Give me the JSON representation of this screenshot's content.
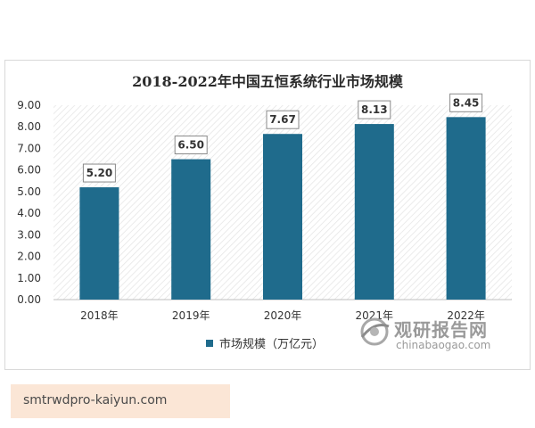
{
  "chart_data": {
    "type": "bar",
    "title": "2018-2022年中国五恒系统行业市场规模",
    "categories": [
      "2018年",
      "2019年",
      "2020年",
      "2021年",
      "2022年"
    ],
    "series": [
      {
        "name": "市场规模（万亿元）",
        "values": [
          5.2,
          6.5,
          7.67,
          8.13,
          8.45
        ]
      }
    ],
    "data_labels": [
      "5.20",
      "6.50",
      "7.67",
      "8.13",
      "8.45"
    ],
    "y_ticks": [
      "0.00",
      "1.00",
      "2.00",
      "3.00",
      "4.00",
      "5.00",
      "6.00",
      "7.00",
      "8.00",
      "9.00"
    ],
    "ylim": [
      0,
      9
    ],
    "bar_color": "#1f6b8c",
    "plot_pattern": "diagonal-hatch",
    "legend_position": "bottom"
  },
  "watermark": {
    "name_cn": "观研报告网",
    "url": "chinabaogao.com"
  },
  "footer": {
    "text": "smtrwdpro-kaiyun.com"
  }
}
